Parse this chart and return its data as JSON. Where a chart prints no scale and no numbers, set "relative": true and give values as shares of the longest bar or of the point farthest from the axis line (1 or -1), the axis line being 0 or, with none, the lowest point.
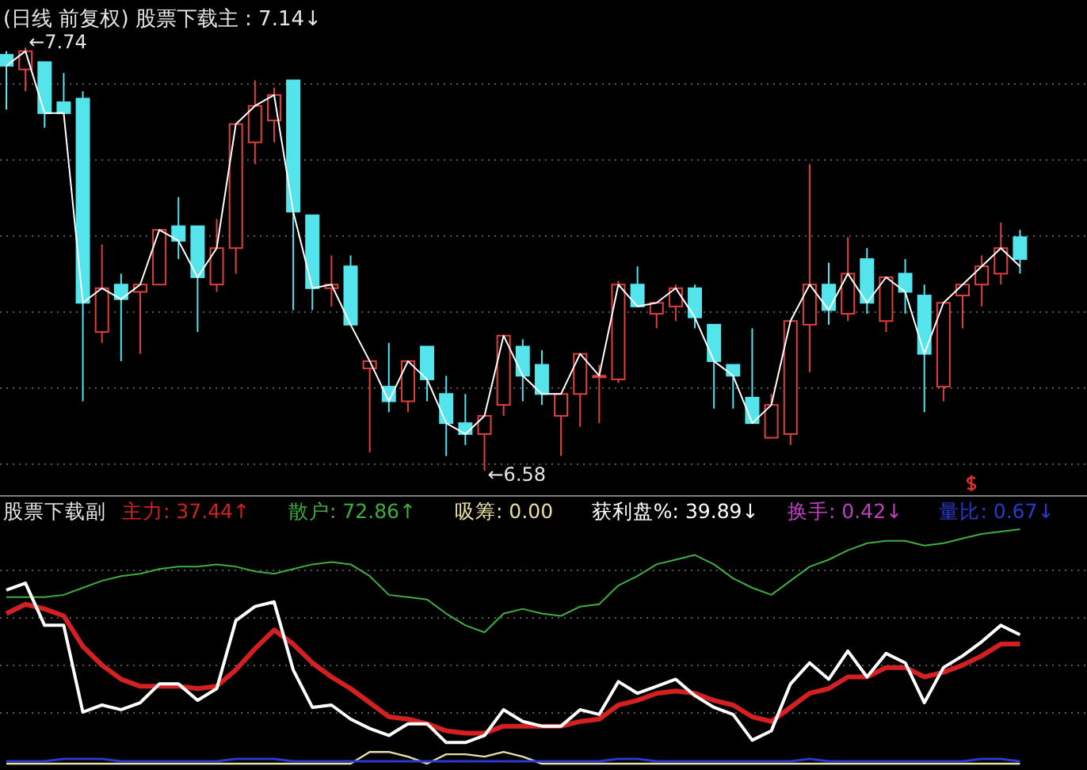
{
  "chart_data": [
    {
      "type": "candlestick",
      "title": "(日线 前复权) 股票下载主 : 7.14↓",
      "grid": "y",
      "categories": [
        null,
        null,
        null,
        null,
        null,
        null,
        null,
        null,
        null,
        null,
        null,
        null,
        null,
        null,
        null,
        null,
        null,
        null,
        null,
        null,
        null,
        null,
        null,
        null,
        null,
        null,
        null,
        null,
        null,
        null,
        null,
        null,
        null,
        null,
        null,
        null,
        null,
        null,
        null,
        null,
        null,
        null,
        null,
        null,
        null,
        null,
        null,
        null,
        null,
        null,
        null,
        null,
        null,
        null
      ],
      "ohlc": [
        [
          7.72,
          7.73,
          7.57,
          7.69
        ],
        [
          7.68,
          7.74,
          7.62,
          7.73
        ],
        [
          7.7,
          7.7,
          7.52,
          7.56
        ],
        [
          7.59,
          7.67,
          7.56,
          7.56
        ],
        [
          7.6,
          7.62,
          6.77,
          7.04
        ],
        [
          6.96,
          7.2,
          6.93,
          7.08
        ],
        [
          7.09,
          7.12,
          6.88,
          7.05
        ],
        [
          7.07,
          7.09,
          6.9,
          7.09
        ],
        [
          7.09,
          7.24,
          7.09,
          7.24
        ],
        [
          7.25,
          7.33,
          7.16,
          7.21
        ],
        [
          7.25,
          7.25,
          6.96,
          7.11
        ],
        [
          7.09,
          7.27,
          7.07,
          7.19
        ],
        [
          7.19,
          7.53,
          7.12,
          7.53
        ],
        [
          7.48,
          7.65,
          7.42,
          7.58
        ],
        [
          7.54,
          7.63,
          7.48,
          7.61
        ],
        [
          7.65,
          7.65,
          7.02,
          7.29
        ],
        [
          7.28,
          7.28,
          7.02,
          7.08
        ],
        [
          7.08,
          7.17,
          7.03,
          7.09
        ],
        [
          7.14,
          7.17,
          6.98,
          6.98
        ],
        [
          6.86,
          6.88,
          6.63,
          6.88
        ],
        [
          6.81,
          6.93,
          6.74,
          6.77
        ],
        [
          6.77,
          6.88,
          6.74,
          6.88
        ],
        [
          6.92,
          6.92,
          6.77,
          6.83
        ],
        [
          6.79,
          6.84,
          6.62,
          6.71
        ],
        [
          6.71,
          6.79,
          6.65,
          6.68
        ],
        [
          6.68,
          6.73,
          6.58,
          6.73
        ],
        [
          6.76,
          6.95,
          6.73,
          6.95
        ],
        [
          6.92,
          6.94,
          6.77,
          6.84
        ],
        [
          6.87,
          6.91,
          6.76,
          6.79
        ],
        [
          6.73,
          6.79,
          6.62,
          6.79
        ],
        [
          6.79,
          6.9,
          6.7,
          6.9
        ],
        [
          6.84,
          6.87,
          6.71,
          6.84
        ],
        [
          6.83,
          7.1,
          6.82,
          7.09
        ],
        [
          7.09,
          7.14,
          7.03,
          7.03
        ],
        [
          7.01,
          7.04,
          6.97,
          7.04
        ],
        [
          7.03,
          7.09,
          6.99,
          7.08
        ],
        [
          7.08,
          7.09,
          6.97,
          7.0
        ],
        [
          6.98,
          6.98,
          6.75,
          6.88
        ],
        [
          6.87,
          6.87,
          6.75,
          6.84
        ],
        [
          6.78,
          6.97,
          6.71,
          6.71
        ],
        [
          6.67,
          6.79,
          6.67,
          6.76
        ],
        [
          6.68,
          6.99,
          6.65,
          6.99
        ],
        [
          6.98,
          7.42,
          6.85,
          7.09
        ],
        [
          7.09,
          7.15,
          6.98,
          7.02
        ],
        [
          7.01,
          7.22,
          6.99,
          7.12
        ],
        [
          7.16,
          7.19,
          7.01,
          7.04
        ],
        [
          6.99,
          7.11,
          6.96,
          7.11
        ],
        [
          7.12,
          7.16,
          7.01,
          7.07
        ],
        [
          7.06,
          7.09,
          6.74,
          6.9
        ],
        [
          6.81,
          7.04,
          6.77,
          7.04
        ],
        [
          7.06,
          7.09,
          6.97,
          7.09
        ],
        [
          7.09,
          7.17,
          7.03,
          7.14
        ],
        [
          7.12,
          7.26,
          7.09,
          7.19
        ],
        [
          7.22,
          7.24,
          7.12,
          7.16
        ]
      ],
      "series": [
        {
          "type": "line",
          "color": "#ffffff",
          "values": [
            7.69,
            7.73,
            7.56,
            7.56,
            7.04,
            7.08,
            7.05,
            7.09,
            7.24,
            7.21,
            7.11,
            7.19,
            7.53,
            7.58,
            7.61,
            7.29,
            7.08,
            7.09,
            6.98,
            6.88,
            6.77,
            6.88,
            6.83,
            6.71,
            6.68,
            6.73,
            6.95,
            6.84,
            6.79,
            6.79,
            6.9,
            6.84,
            7.09,
            7.03,
            7.04,
            7.08,
            7.0,
            6.88,
            6.84,
            6.71,
            6.76,
            6.99,
            7.09,
            7.02,
            7.12,
            7.04,
            7.11,
            7.07,
            6.9,
            7.04,
            7.09,
            7.14,
            7.19,
            7.14
          ]
        }
      ],
      "annotations": [
        "←7.74",
        "←6.58"
      ]
    },
    {
      "type": "line",
      "title": "股票下载副",
      "relative": true,
      "categories": [
        null,
        null,
        null,
        null,
        null,
        null,
        null,
        null,
        null,
        null,
        null,
        null,
        null,
        null,
        null,
        null,
        null,
        null,
        null,
        null,
        null,
        null,
        null,
        null,
        null,
        null,
        null,
        null,
        null,
        null,
        null,
        null,
        null,
        null,
        null,
        null,
        null,
        null,
        null,
        null,
        null,
        null,
        null,
        null,
        null,
        null,
        null,
        null,
        null,
        null,
        null,
        null,
        null,
        null
      ],
      "series": [
        {
          "name": "主力: 37.44↑",
          "color": "#d42020",
          "values": [
            0.64,
            0.68,
            0.66,
            0.63,
            0.5,
            0.42,
            0.36,
            0.33,
            0.33,
            0.33,
            0.32,
            0.33,
            0.4,
            0.49,
            0.57,
            0.51,
            0.43,
            0.37,
            0.32,
            0.26,
            0.2,
            0.19,
            0.17,
            0.14,
            0.13,
            0.13,
            0.16,
            0.16,
            0.16,
            0.16,
            0.18,
            0.19,
            0.25,
            0.27,
            0.3,
            0.31,
            0.3,
            0.27,
            0.25,
            0.2,
            0.18,
            0.24,
            0.3,
            0.32,
            0.37,
            0.37,
            0.41,
            0.41,
            0.37,
            0.39,
            0.42,
            0.46,
            0.51,
            0.51
          ]
        },
        {
          "name": "散户: 72.86↑",
          "color": "#3fae3f",
          "values": [
            0.71,
            0.71,
            0.71,
            0.72,
            0.75,
            0.78,
            0.8,
            0.81,
            0.83,
            0.84,
            0.84,
            0.85,
            0.84,
            0.82,
            0.81,
            0.83,
            0.85,
            0.86,
            0.85,
            0.8,
            0.72,
            0.71,
            0.7,
            0.64,
            0.59,
            0.56,
            0.64,
            0.66,
            0.64,
            0.63,
            0.67,
            0.68,
            0.76,
            0.8,
            0.85,
            0.87,
            0.89,
            0.85,
            0.79,
            0.75,
            0.72,
            0.78,
            0.84,
            0.87,
            0.91,
            0.94,
            0.95,
            0.95,
            0.93,
            0.94,
            0.96,
            0.98,
            0.99,
            1.0
          ]
        },
        {
          "name": "吸筹: 0.00",
          "color": "#e8e0a0",
          "values": [
            0,
            0,
            0,
            0,
            0,
            0,
            0,
            0,
            0,
            0,
            0,
            0,
            0,
            0,
            0,
            0,
            0,
            0,
            0,
            0.05,
            0.05,
            0.03,
            0,
            0.04,
            0.04,
            0.03,
            0.05,
            0.03,
            0,
            0,
            0,
            0,
            0,
            0,
            0,
            0,
            0,
            0,
            0,
            0,
            0,
            0,
            0,
            0,
            0,
            0,
            0,
            0,
            0,
            0,
            0,
            0,
            0,
            0
          ]
        },
        {
          "name": "获利盘%: 39.89↓",
          "color": "#ffffff",
          "values": [
            0.74,
            0.77,
            0.59,
            0.59,
            0.22,
            0.25,
            0.23,
            0.26,
            0.34,
            0.34,
            0.27,
            0.32,
            0.61,
            0.67,
            0.69,
            0.4,
            0.24,
            0.25,
            0.19,
            0.15,
            0.12,
            0.17,
            0.17,
            0.09,
            0.09,
            0.12,
            0.23,
            0.18,
            0.16,
            0.16,
            0.23,
            0.21,
            0.35,
            0.3,
            0.33,
            0.36,
            0.29,
            0.24,
            0.21,
            0.1,
            0.14,
            0.34,
            0.43,
            0.36,
            0.48,
            0.37,
            0.47,
            0.43,
            0.26,
            0.41,
            0.46,
            0.52,
            0.59,
            0.55
          ]
        },
        {
          "name": "量比: 0.67↓",
          "color": "#2a3ad0",
          "values": [
            0.01,
            0.01,
            0.01,
            0.02,
            0.02,
            0.02,
            0.01,
            0.01,
            0.01,
            0.01,
            0.01,
            0.01,
            0.02,
            0.02,
            0.02,
            0.01,
            0.01,
            0.01,
            0.01,
            0.01,
            0.01,
            0.01,
            0.01,
            0.01,
            0.01,
            0.01,
            0.01,
            0.01,
            0.01,
            0.01,
            0.01,
            0.01,
            0.02,
            0.02,
            0.01,
            0.01,
            0.01,
            0.01,
            0.01,
            0.01,
            0.01,
            0.01,
            0.02,
            0.01,
            0.01,
            0.01,
            0.01,
            0.01,
            0.01,
            0.01,
            0.01,
            0.02,
            0.02,
            0.01
          ]
        }
      ],
      "annotations": [
        "换手: 0.42↓"
      ]
    }
  ]
}
